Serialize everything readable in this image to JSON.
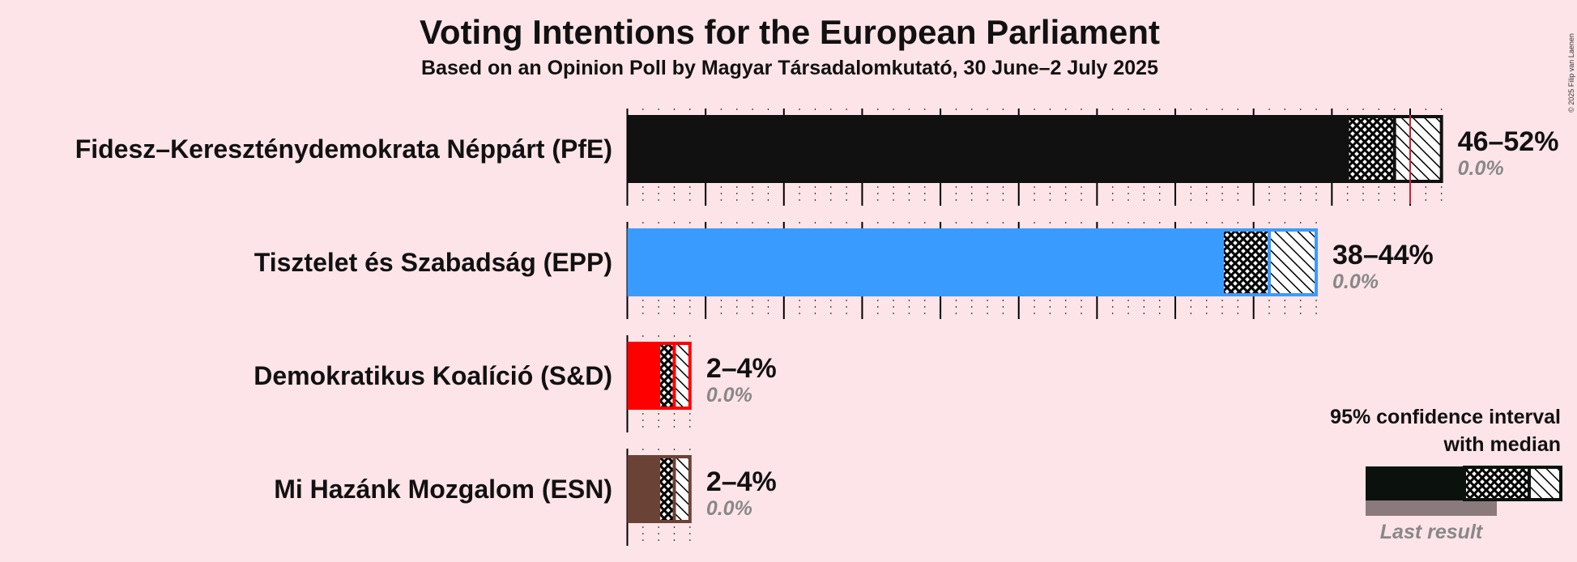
{
  "copyright": "© 2025 Filip van Laenen",
  "chart_data": {
    "type": "bar",
    "orientation": "horizontal",
    "title": "Voting Intentions for the European Parliament",
    "subtitle": "Based on an Opinion Poll by Magyar Társadalomkutató, 30 June–2 July 2025",
    "xlim": [
      0,
      52
    ],
    "grid": true,
    "series": [
      {
        "name": "Fidesz–Kereszténydemokrata Néppárt (PfE)",
        "color": "#111111",
        "ci_low": 46,
        "median": 49,
        "ci_high": 52,
        "range_label": "46–52%",
        "last_result_label": "0.0%",
        "last_result": 0.0,
        "threshold_mark": 50.0
      },
      {
        "name": "Tisztelet és Szabadság (EPP)",
        "color": "#3a9bff",
        "ci_low": 38,
        "median": 41,
        "ci_high": 44,
        "range_label": "38–44%",
        "last_result_label": "0.0%",
        "last_result": 0.0
      },
      {
        "name": "Demokratikus Koalíció (S&D)",
        "color": "#ff0000",
        "ci_low": 2,
        "median": 3,
        "ci_high": 4,
        "range_label": "2–4%",
        "last_result_label": "0.0%",
        "last_result": 0.0
      },
      {
        "name": "Mi Hazánk Mozgalom (ESN)",
        "color": "#6b4236",
        "ci_low": 2,
        "median": 3,
        "ci_high": 4,
        "range_label": "2–4%",
        "last_result_label": "0.0%",
        "last_result": 0.0
      }
    ],
    "legend": {
      "position": "bottom-right",
      "line1": "95% confidence interval",
      "line2": "with median",
      "last_result": "Last result"
    }
  }
}
